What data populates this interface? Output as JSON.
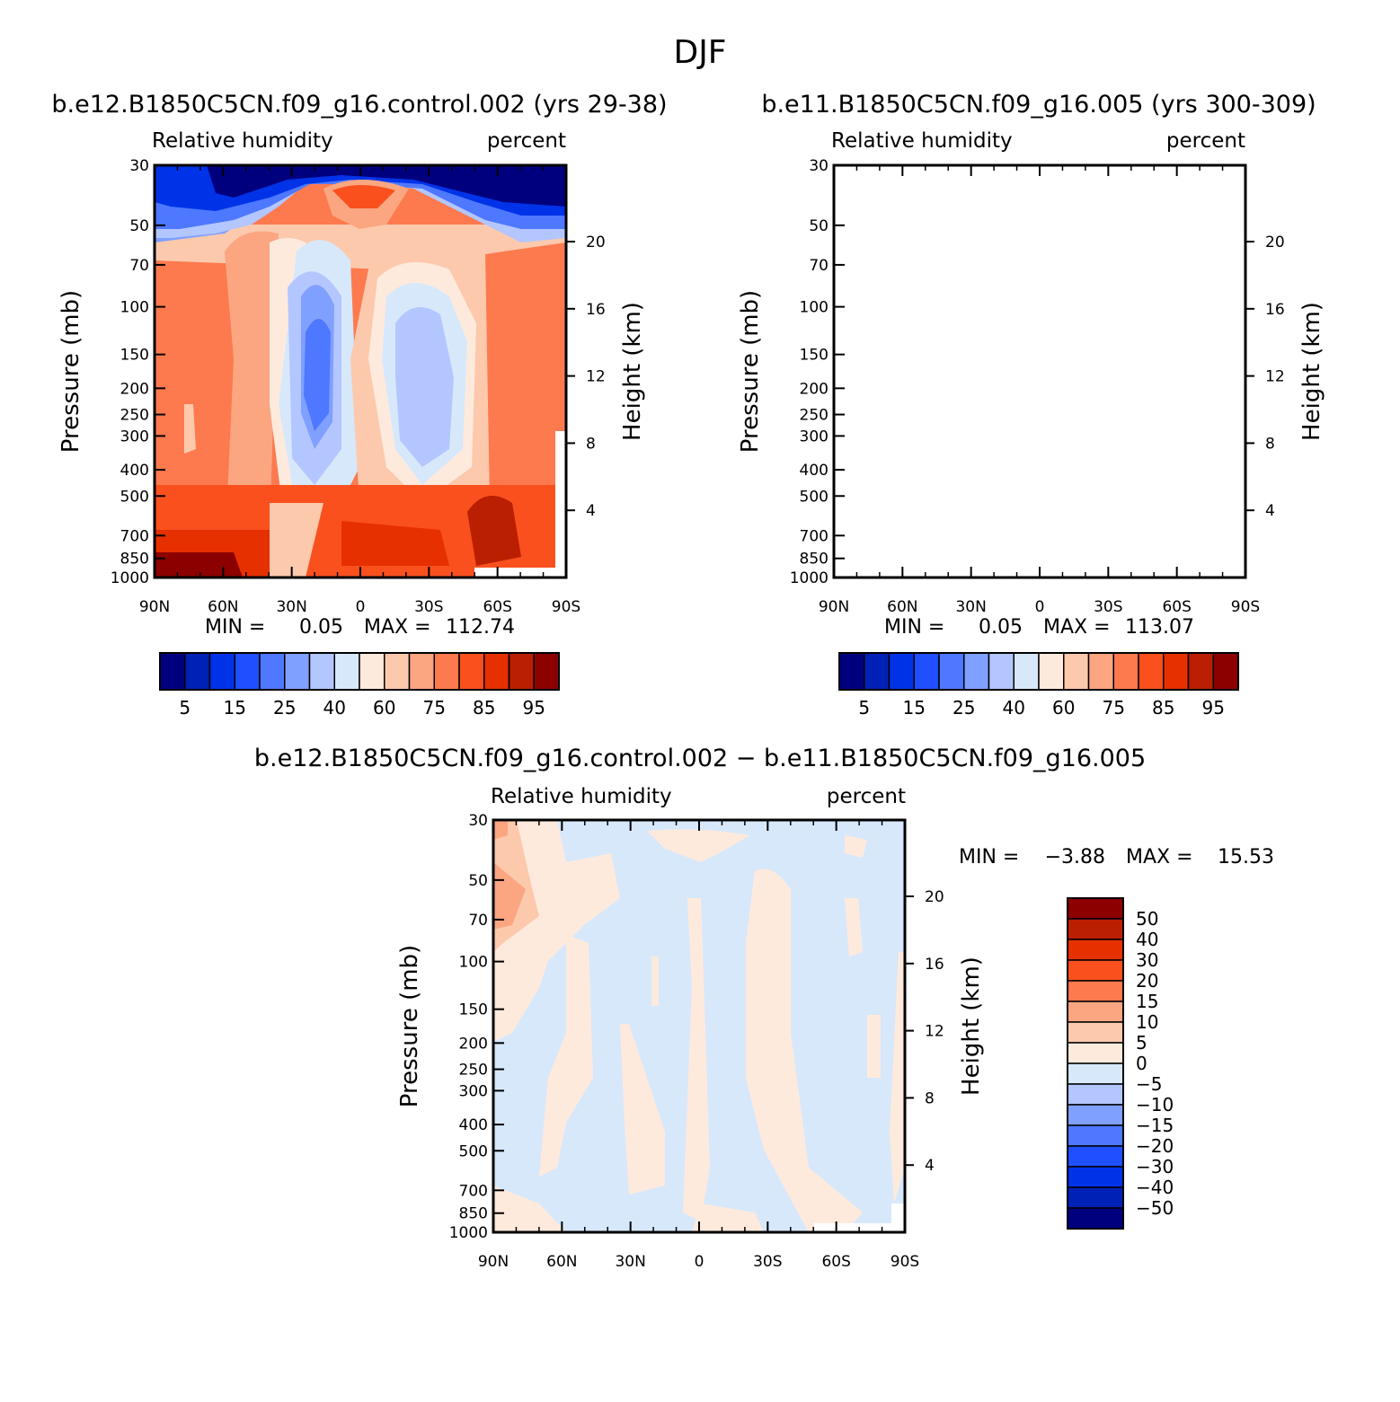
{
  "figure": {
    "title": "DJF"
  },
  "chart_data": [
    {
      "type": "heatmap",
      "title": "b.e12.B1850C5CN.f09_g16.control.002 (yrs 29-38)",
      "subtitle_left": "Relative humidity",
      "subtitle_right": "percent",
      "ylabel": "Pressure (mb)",
      "ylabel_right": "Height (km)",
      "x_ticks": [
        "90N",
        "60N",
        "30N",
        "0",
        "30S",
        "60S",
        "90S"
      ],
      "y_ticks": [
        "30",
        "50",
        "70",
        "100",
        "150",
        "200",
        "250",
        "300",
        "400",
        "500",
        "700",
        "850",
        "1000"
      ],
      "y_ticks_right": [
        "20",
        "16",
        "12",
        "8",
        "4"
      ],
      "stats": {
        "min_label": "MIN =",
        "min": "0.05",
        "max_label": "MAX =",
        "max": "112.74"
      },
      "levels": [
        5,
        10,
        15,
        20,
        25,
        30,
        40,
        50,
        60,
        70,
        75,
        80,
        85,
        90,
        95
      ],
      "colorbar_labels": [
        "5",
        "15",
        "25",
        "40",
        "60",
        "75",
        "85",
        "95"
      ]
    },
    {
      "type": "heatmap",
      "title": "b.e11.B1850C5CN.f09_g16.005 (yrs 300-309)",
      "subtitle_left": "Relative humidity",
      "subtitle_right": "percent",
      "ylabel": "Pressure (mb)",
      "ylabel_right": "Height (km)",
      "x_ticks": [
        "90N",
        "60N",
        "30N",
        "0",
        "30S",
        "60S",
        "90S"
      ],
      "y_ticks": [
        "30",
        "50",
        "70",
        "100",
        "150",
        "200",
        "250",
        "300",
        "400",
        "500",
        "700",
        "850",
        "1000"
      ],
      "y_ticks_right": [
        "20",
        "16",
        "12",
        "8",
        "4"
      ],
      "stats": {
        "min_label": "MIN =",
        "min": "0.05",
        "max_label": "MAX =",
        "max": "113.07"
      },
      "levels": [
        5,
        10,
        15,
        20,
        25,
        30,
        40,
        50,
        60,
        70,
        75,
        80,
        85,
        90,
        95
      ],
      "colorbar_labels": [
        "5",
        "15",
        "25",
        "40",
        "60",
        "75",
        "85",
        "95"
      ]
    },
    {
      "type": "heatmap",
      "title": "b.e12.B1850C5CN.f09_g16.control.002 − b.e11.B1850C5CN.f09_g16.005",
      "subtitle_left": "Relative humidity",
      "subtitle_right": "percent",
      "ylabel": "Pressure (mb)",
      "ylabel_right": "Height (km)",
      "x_ticks": [
        "90N",
        "60N",
        "30N",
        "0",
        "30S",
        "60S",
        "90S"
      ],
      "y_ticks": [
        "30",
        "50",
        "70",
        "100",
        "150",
        "200",
        "250",
        "300",
        "400",
        "500",
        "700",
        "850",
        "1000"
      ],
      "y_ticks_right": [
        "20",
        "16",
        "12",
        "8",
        "4"
      ],
      "stats": {
        "min_label": "MIN =",
        "min": "−3.88",
        "max_label": "MAX =",
        "max": "15.53"
      },
      "levels": [
        -50,
        -40,
        -30,
        -20,
        -15,
        -10,
        -5,
        0,
        5,
        10,
        15,
        20,
        30,
        40,
        50
      ],
      "colorbar_labels": [
        "50",
        "40",
        "30",
        "20",
        "15",
        "10",
        "5",
        "0",
        "−5",
        "−10",
        "−15",
        "−20",
        "−30",
        "−40",
        "−50"
      ]
    }
  ],
  "palette": [
    "#00007f",
    "#0021b5",
    "#0033e8",
    "#1f4fff",
    "#4d78ff",
    "#80a0ff",
    "#b3c6ff",
    "#d7e8fb",
    "#feeadc",
    "#fcc9ad",
    "#fba681",
    "#fd7a4e",
    "#f9501e",
    "#e63000",
    "#b91f00",
    "#8c0000"
  ]
}
